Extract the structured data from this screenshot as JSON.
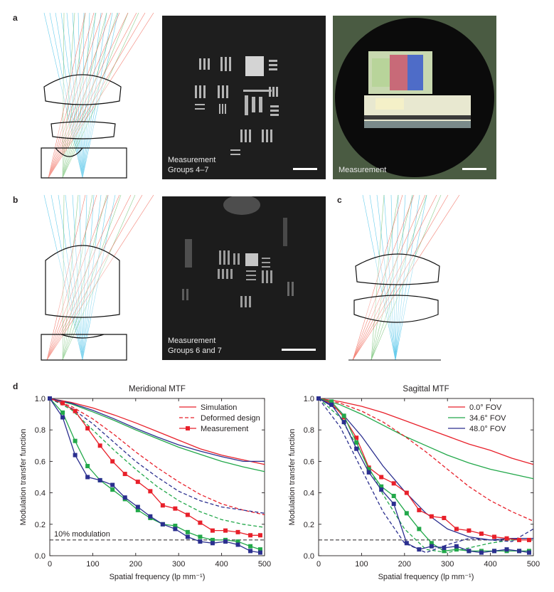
{
  "panels": {
    "a": "a",
    "b": "b",
    "c": "c",
    "d": "d",
    "a_mid_caption_1": "Measurement",
    "a_mid_caption_2": "Groups 4–7",
    "a_right_caption": "Measurement",
    "b_caption_1": "Measurement",
    "b_caption_2": "Groups 6 and 7"
  },
  "colors": {
    "red": "#e8202a",
    "green": "#22a84a",
    "blue": "#2b2f8f",
    "ray_red": "#f06050",
    "ray_green": "#70c070",
    "ray_blue": "#40c0e8"
  },
  "chart_data": [
    {
      "type": "line",
      "title": "Meridional MTF",
      "xlabel": "Spatial frequency (lp mm⁻¹)",
      "ylabel": "Modulation transfer function",
      "xlim": [
        0,
        500
      ],
      "ylim": [
        0,
        1.0
      ],
      "xticks": [
        0,
        100,
        200,
        300,
        400,
        500
      ],
      "yticks": [
        0.0,
        0.2,
        0.4,
        0.6,
        0.8,
        1.0
      ],
      "ytick_labels": [
        "0.0",
        "0.2",
        "0.4",
        "0.6",
        "0.8",
        "1.0"
      ],
      "legend": [
        "Simulation",
        "Deformed design",
        "Measurement"
      ],
      "legend_position": "top-right",
      "threshold": {
        "y": 0.1,
        "label": "10% modulation"
      },
      "series": [
        {
          "color": "red",
          "style": "solid",
          "x": [
            0,
            50,
            100,
            150,
            200,
            250,
            300,
            350,
            400,
            450,
            500
          ],
          "y": [
            1.0,
            0.975,
            0.94,
            0.895,
            0.845,
            0.79,
            0.735,
            0.68,
            0.64,
            0.61,
            0.58
          ]
        },
        {
          "color": "green",
          "style": "solid",
          "x": [
            0,
            50,
            100,
            150,
            200,
            250,
            300,
            350,
            400,
            450,
            500
          ],
          "y": [
            1.0,
            0.965,
            0.915,
            0.86,
            0.8,
            0.745,
            0.69,
            0.645,
            0.6,
            0.565,
            0.535
          ]
        },
        {
          "color": "blue",
          "style": "solid",
          "x": [
            0,
            50,
            100,
            150,
            200,
            250,
            300,
            350,
            400,
            450,
            500
          ],
          "y": [
            1.0,
            0.97,
            0.925,
            0.87,
            0.81,
            0.755,
            0.705,
            0.665,
            0.63,
            0.6,
            0.6
          ]
        },
        {
          "color": "red",
          "style": "dashed",
          "x": [
            0,
            50,
            100,
            150,
            200,
            250,
            300,
            350,
            400,
            450,
            500
          ],
          "y": [
            1.0,
            0.95,
            0.87,
            0.77,
            0.66,
            0.56,
            0.47,
            0.39,
            0.33,
            0.29,
            0.26
          ]
        },
        {
          "color": "green",
          "style": "dashed",
          "x": [
            0,
            50,
            100,
            150,
            200,
            250,
            300,
            350,
            400,
            450,
            500
          ],
          "y": [
            1.0,
            0.93,
            0.8,
            0.67,
            0.55,
            0.44,
            0.35,
            0.28,
            0.23,
            0.2,
            0.18
          ]
        },
        {
          "color": "blue",
          "style": "dashed",
          "x": [
            0,
            50,
            100,
            150,
            200,
            250,
            300,
            350,
            400,
            450,
            500
          ],
          "y": [
            1.0,
            0.94,
            0.84,
            0.72,
            0.6,
            0.5,
            0.41,
            0.35,
            0.31,
            0.29,
            0.27
          ]
        },
        {
          "color": "red",
          "style": "measurement",
          "x": [
            0,
            30,
            59,
            88,
            117,
            146,
            175,
            205,
            234,
            263,
            292,
            321,
            350,
            379,
            409,
            438,
            467,
            490
          ],
          "y": [
            1.0,
            0.97,
            0.92,
            0.81,
            0.7,
            0.6,
            0.52,
            0.47,
            0.41,
            0.32,
            0.3,
            0.26,
            0.21,
            0.16,
            0.16,
            0.15,
            0.13,
            0.13
          ]
        },
        {
          "color": "green",
          "style": "measurement",
          "x": [
            0,
            30,
            59,
            88,
            117,
            146,
            175,
            205,
            234,
            263,
            292,
            321,
            350,
            379,
            409,
            438,
            467,
            490
          ],
          "y": [
            1.0,
            0.91,
            0.73,
            0.57,
            0.48,
            0.42,
            0.36,
            0.29,
            0.24,
            0.2,
            0.19,
            0.15,
            0.12,
            0.1,
            0.1,
            0.09,
            0.06,
            0.04
          ]
        },
        {
          "color": "blue",
          "style": "measurement",
          "x": [
            0,
            30,
            59,
            88,
            117,
            146,
            175,
            205,
            234,
            263,
            292,
            321,
            350,
            379,
            409,
            438,
            467,
            490
          ],
          "y": [
            1.0,
            0.88,
            0.64,
            0.5,
            0.48,
            0.45,
            0.37,
            0.31,
            0.25,
            0.2,
            0.17,
            0.12,
            0.09,
            0.08,
            0.09,
            0.07,
            0.03,
            0.02
          ]
        }
      ]
    },
    {
      "type": "line",
      "title": "Sagittal MTF",
      "xlabel": "Spatial frequency (lp mm⁻¹)",
      "ylabel": "Modulation transfer function",
      "xlim": [
        0,
        500
      ],
      "ylim": [
        0,
        1.0
      ],
      "xticks": [
        0,
        100,
        200,
        300,
        400,
        500
      ],
      "yticks": [
        0.0,
        0.2,
        0.4,
        0.6,
        0.8,
        1.0
      ],
      "ytick_labels": [
        "0.0",
        "0.2",
        "0.4",
        "0.6",
        "0.8",
        "1.0"
      ],
      "legend": [
        "0.0° FOV",
        "34.6° FOV",
        "48.0° FOV"
      ],
      "legend_position": "top-right",
      "threshold": {
        "y": 0.1,
        "label": ""
      },
      "series": [
        {
          "color": "red",
          "style": "solid",
          "x": [
            0,
            50,
            100,
            150,
            200,
            250,
            300,
            350,
            400,
            450,
            500
          ],
          "y": [
            1.0,
            0.98,
            0.95,
            0.91,
            0.86,
            0.81,
            0.76,
            0.71,
            0.67,
            0.62,
            0.58
          ]
        },
        {
          "color": "green",
          "style": "solid",
          "x": [
            0,
            50,
            100,
            150,
            200,
            250,
            300,
            350,
            400,
            450,
            500
          ],
          "y": [
            1.0,
            0.96,
            0.9,
            0.83,
            0.76,
            0.7,
            0.64,
            0.59,
            0.55,
            0.52,
            0.49
          ]
        },
        {
          "color": "blue",
          "style": "solid",
          "x": [
            0,
            50,
            100,
            150,
            200,
            250,
            300,
            350,
            400,
            450,
            500
          ],
          "y": [
            1.0,
            0.92,
            0.76,
            0.57,
            0.41,
            0.27,
            0.17,
            0.12,
            0.1,
            0.11,
            0.11
          ]
        },
        {
          "color": "red",
          "style": "dashed",
          "x": [
            0,
            50,
            100,
            150,
            200,
            250,
            300,
            350,
            400,
            450,
            500
          ],
          "y": [
            1.0,
            0.97,
            0.92,
            0.85,
            0.76,
            0.66,
            0.55,
            0.44,
            0.35,
            0.28,
            0.22
          ]
        },
        {
          "color": "green",
          "style": "dashed",
          "x": [
            0,
            50,
            100,
            150,
            200,
            250,
            300,
            350,
            400,
            450,
            500
          ],
          "y": [
            1.0,
            0.88,
            0.65,
            0.39,
            0.17,
            0.04,
            0.02,
            0.05,
            0.08,
            0.1,
            0.1
          ]
        },
        {
          "color": "blue",
          "style": "dashed",
          "x": [
            0,
            50,
            100,
            150,
            200,
            250,
            300,
            350,
            400,
            450,
            500
          ],
          "y": [
            1.0,
            0.82,
            0.55,
            0.28,
            0.08,
            0.02,
            0.07,
            0.11,
            0.1,
            0.09,
            0.17
          ]
        },
        {
          "color": "red",
          "style": "measurement",
          "x": [
            0,
            30,
            59,
            88,
            117,
            146,
            175,
            205,
            234,
            263,
            292,
            321,
            350,
            379,
            409,
            438,
            467,
            490
          ],
          "y": [
            1.0,
            0.97,
            0.88,
            0.75,
            0.56,
            0.5,
            0.46,
            0.4,
            0.29,
            0.25,
            0.24,
            0.17,
            0.16,
            0.14,
            0.12,
            0.11,
            0.1,
            0.1
          ]
        },
        {
          "color": "green",
          "style": "measurement",
          "x": [
            0,
            30,
            59,
            88,
            117,
            146,
            175,
            205,
            234,
            263,
            292,
            321,
            350,
            379,
            409,
            438,
            467,
            490
          ],
          "y": [
            1.0,
            0.98,
            0.89,
            0.72,
            0.55,
            0.44,
            0.38,
            0.27,
            0.17,
            0.08,
            0.03,
            0.04,
            0.03,
            0.03,
            0.03,
            0.03,
            0.03,
            0.03
          ]
        },
        {
          "color": "blue",
          "style": "measurement",
          "x": [
            0,
            30,
            59,
            88,
            117,
            146,
            175,
            205,
            234,
            263,
            292,
            321,
            350,
            379,
            409,
            438,
            467,
            490
          ],
          "y": [
            1.0,
            0.96,
            0.85,
            0.68,
            0.53,
            0.42,
            0.33,
            0.08,
            0.04,
            0.06,
            0.05,
            0.06,
            0.03,
            0.02,
            0.03,
            0.04,
            0.03,
            0.02
          ]
        }
      ]
    }
  ]
}
